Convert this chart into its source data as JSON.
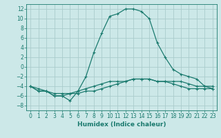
{
  "xlabel": "Humidex (Indice chaleur)",
  "ylabel": "",
  "background_color": "#cce8e8",
  "grid_color": "#aacccc",
  "line_color": "#1a7a6e",
  "x_values": [
    0,
    1,
    2,
    3,
    4,
    5,
    6,
    7,
    8,
    9,
    10,
    11,
    12,
    13,
    14,
    15,
    16,
    17,
    18,
    19,
    20,
    21,
    22,
    23
  ],
  "series1": [
    -4,
    -5,
    -5,
    -6,
    -6,
    -7,
    -5,
    -2,
    3,
    7,
    10.5,
    11,
    12,
    12,
    11.5,
    10,
    5,
    2,
    -0.5,
    -1.5,
    -2,
    -2.5,
    -4,
    -4
  ],
  "series2": [
    -4,
    -5,
    -5,
    -6,
    -6,
    -5.5,
    -5.5,
    -5,
    -5,
    -4.5,
    -4,
    -3.5,
    -3,
    -2.5,
    -2.5,
    -2.5,
    -3,
    -3,
    -3,
    -3,
    -3.5,
    -4,
    -4,
    -4.5
  ],
  "series3": [
    -4,
    -4.5,
    -5,
    -5.5,
    -5.5,
    -5.5,
    -5,
    -4.5,
    -4,
    -3.5,
    -3,
    -3,
    -3,
    -2.5,
    -2.5,
    -2.5,
    -3,
    -3,
    -3.5,
    -4,
    -4.5,
    -4.5,
    -4.5,
    -4.5
  ],
  "xlim": [
    -0.5,
    23.5
  ],
  "ylim": [
    -9,
    13
  ],
  "yticks": [
    -8,
    -6,
    -4,
    -2,
    0,
    2,
    4,
    6,
    8,
    10,
    12
  ],
  "xticks": [
    0,
    1,
    2,
    3,
    4,
    5,
    6,
    7,
    8,
    9,
    10,
    11,
    12,
    13,
    14,
    15,
    16,
    17,
    18,
    19,
    20,
    21,
    22,
    23
  ],
  "xlabel_fontsize": 6.5,
  "tick_fontsize": 5.5,
  "linewidth": 0.9,
  "markersize": 3,
  "markeredgewidth": 0.8
}
